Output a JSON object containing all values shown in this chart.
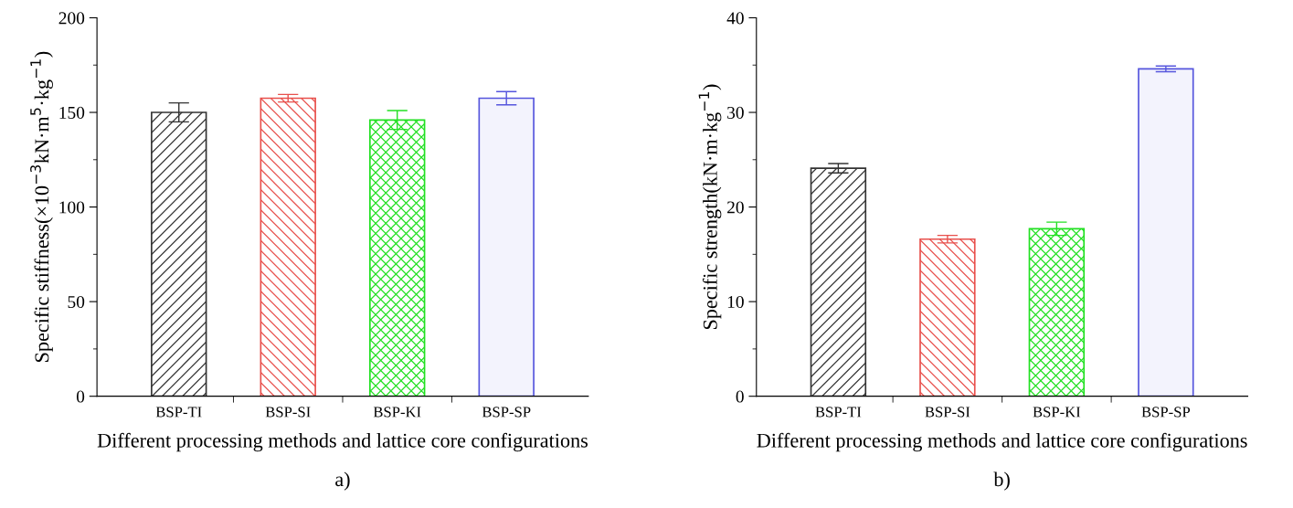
{
  "chart_data": [
    {
      "type": "bar",
      "title": "a)",
      "xlabel": "Different processing methods and lattice core configurations",
      "ylabel": "Specific stiffness(×10$^{−3}$kN·m$^{5}$·kg$^{−1}$)",
      "categories": [
        "BSP-TI",
        "BSP-SI",
        "BSP-KI",
        "BSP-SP"
      ],
      "values": [
        150,
        157.5,
        146,
        157.5
      ],
      "errors": [
        5,
        2,
        5,
        3.5
      ],
      "colors": [
        "#333333",
        "#e8504c",
        "#22e022",
        "#5555dd"
      ],
      "ylim": [
        0,
        200
      ],
      "yticks": [
        0,
        {
          "value": 25,
          "label": null
        },
        50,
        {
          "value": 75,
          "label": null
        },
        100,
        {
          "value": 125,
          "label": null
        },
        150,
        {
          "value": 175,
          "label": null
        },
        200
      ],
      "grid": false
    },
    {
      "type": "bar",
      "title": "b)",
      "xlabel": "Different processing methods and lattice core configurations",
      "ylabel": "Specific strength(kN·m·kg$^{−1}$)",
      "categories": [
        "BSP-TI",
        "BSP-SI",
        "BSP-KI",
        "BSP-SP"
      ],
      "values": [
        24.1,
        16.6,
        17.7,
        34.6
      ],
      "errors": [
        0.5,
        0.4,
        0.7,
        0.3
      ],
      "colors": [
        "#333333",
        "#e8504c",
        "#22e022",
        "#5555dd"
      ],
      "ylim": [
        0,
        40
      ],
      "yticks": [
        0,
        {
          "value": 5,
          "label": null
        },
        10,
        {
          "value": 15,
          "label": null
        },
        20,
        {
          "value": 25,
          "label": null
        },
        30,
        {
          "value": 35,
          "label": null
        },
        40
      ],
      "grid": false
    }
  ]
}
